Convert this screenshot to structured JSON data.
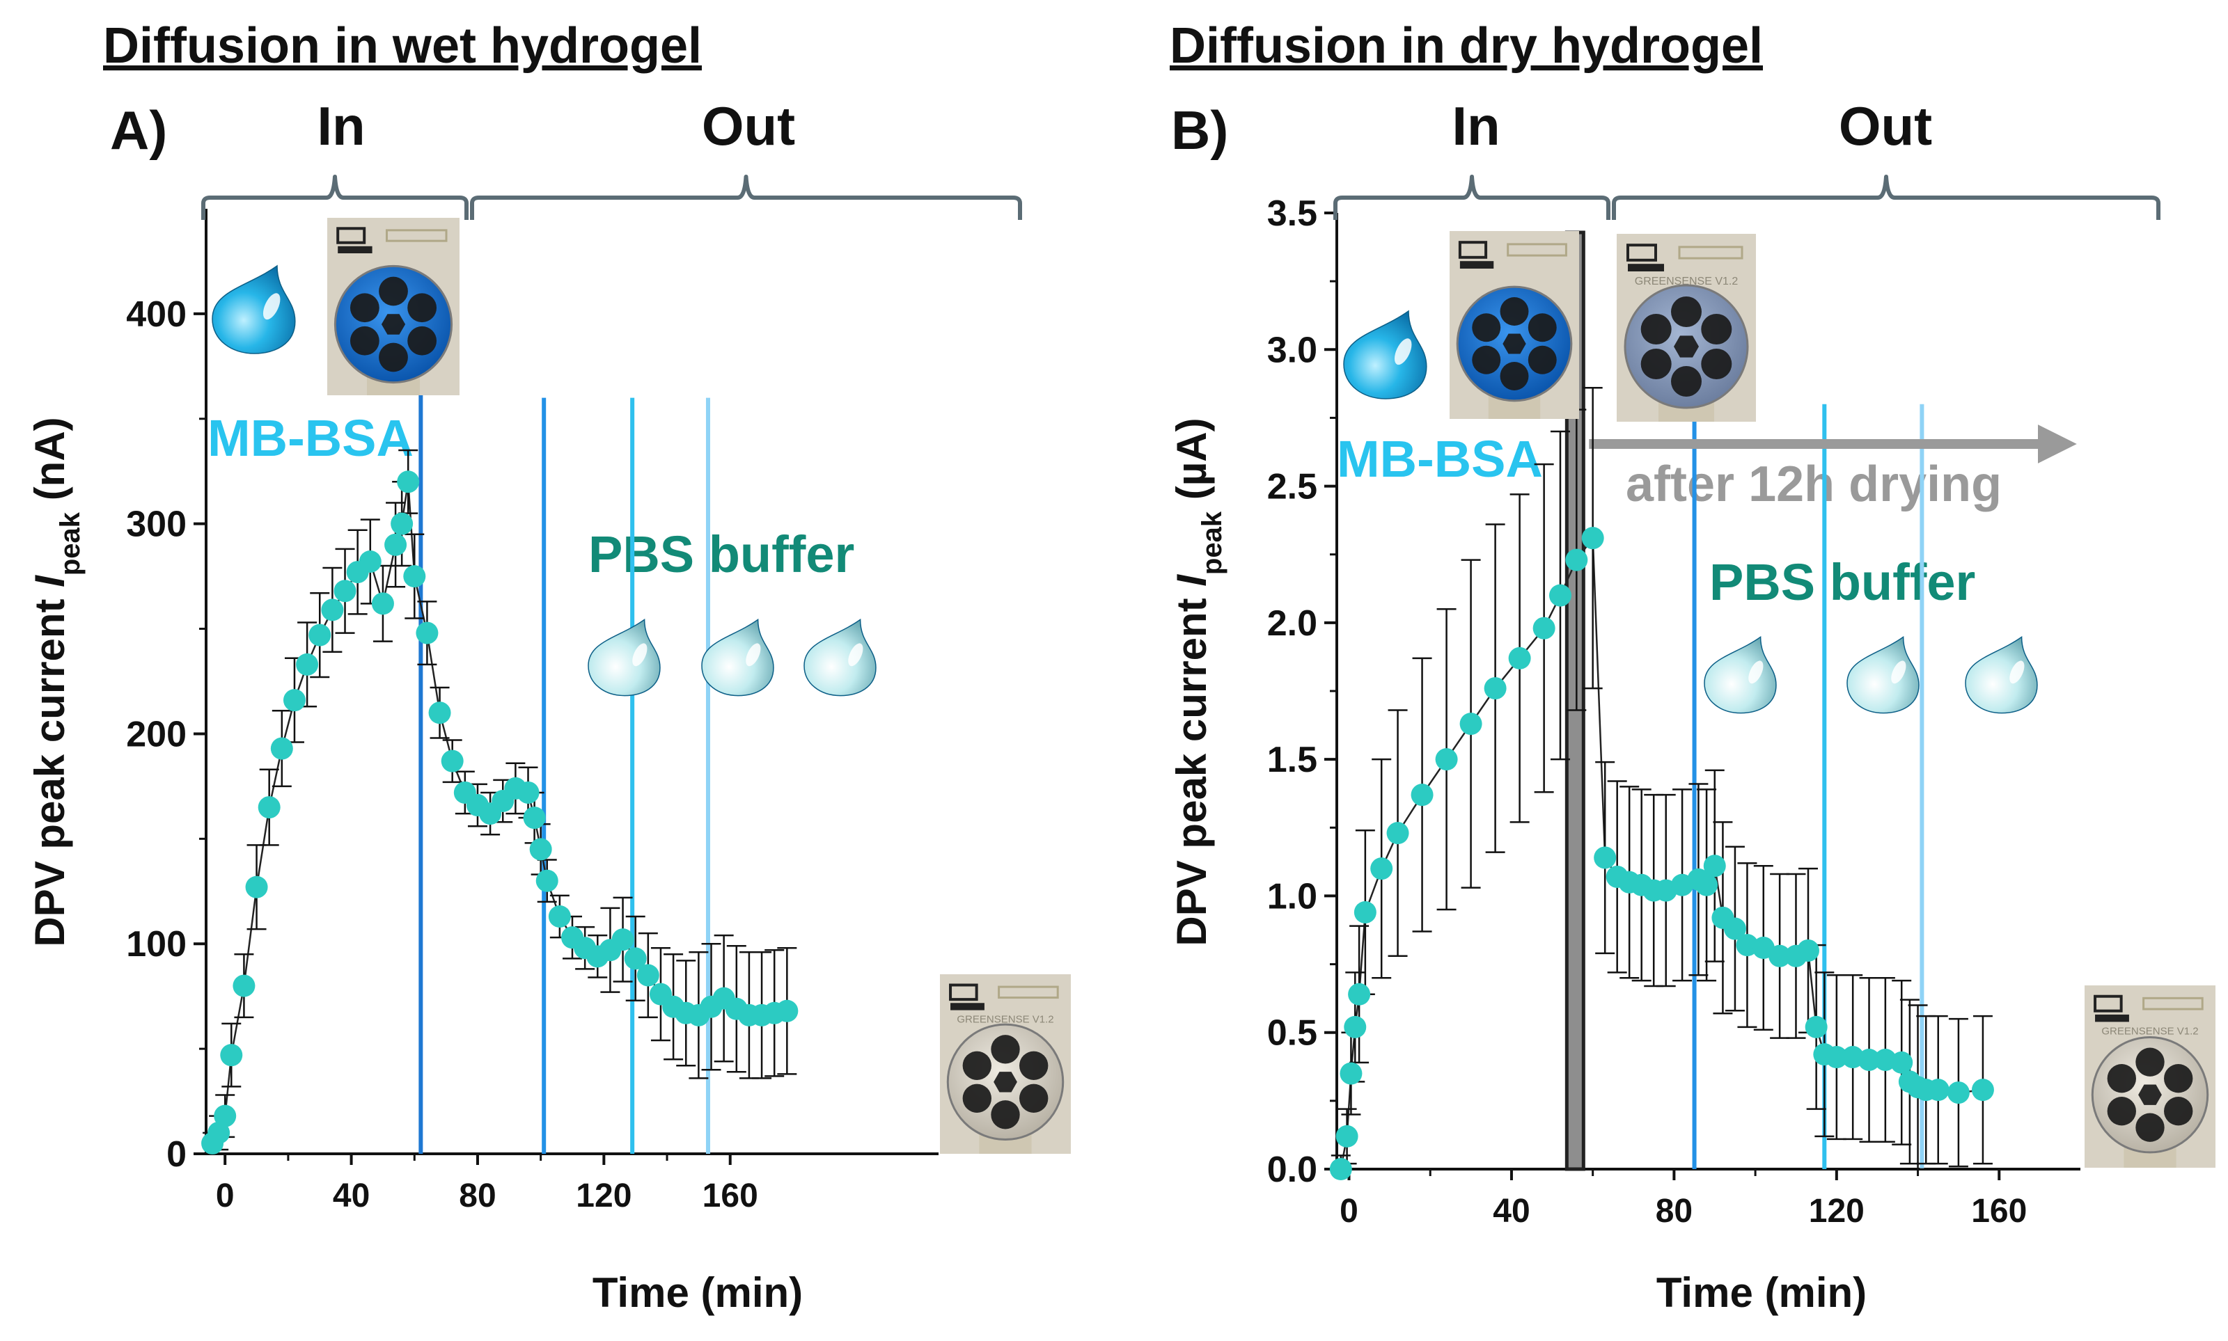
{
  "chart_data": [
    {
      "panel": "A)",
      "type": "scatter",
      "title": "Diffusion in wet hydrogel",
      "xlabel": "Time (min)",
      "ylabel": "DPV peak current I_peak (nA)",
      "ylabel_parts": {
        "main": "DPV peak current ",
        "italic": "I",
        "sub": "peak",
        "unit": " (nA)"
      },
      "xlim": [
        -6,
        226
      ],
      "ylim": [
        0,
        450
      ],
      "x_ticks": [
        0,
        40,
        80,
        120,
        160
      ],
      "y_ticks": [
        0,
        100,
        200,
        300,
        400
      ],
      "x_tick_labels": [
        "0",
        "40",
        "80",
        "120",
        "160"
      ],
      "y_tick_labels": [
        "0",
        "100",
        "200",
        "300",
        "400"
      ],
      "brace_labels": [
        "In",
        "Out"
      ],
      "annotations": {
        "mb": "MB-BSA",
        "pbs": "PBS buffer"
      },
      "vlines": [
        {
          "x": 62,
          "color": "#1e78d2"
        },
        {
          "x": 101,
          "color": "#2391e6"
        },
        {
          "x": 129,
          "color": "#2fc0ee"
        },
        {
          "x": 153,
          "color": "#8fd3f6"
        }
      ],
      "series": [
        {
          "name": "MB-BSA",
          "x": [
            -4,
            -2,
            0,
            2,
            6,
            10,
            14,
            18,
            22,
            26,
            30,
            34,
            38,
            42,
            46,
            50,
            54,
            56,
            58,
            60,
            64,
            68,
            72,
            76,
            80,
            84,
            88,
            92,
            96,
            98,
            100,
            102,
            106,
            110,
            114,
            118,
            122,
            126,
            130,
            134,
            138,
            142,
            146,
            150,
            154,
            158,
            162,
            166,
            170,
            174,
            178
          ],
          "y": [
            5,
            10,
            18,
            47,
            80,
            127,
            165,
            193,
            216,
            233,
            247,
            259,
            268,
            277,
            282,
            262,
            290,
            300,
            320,
            275,
            248,
            210,
            187,
            172,
            166,
            162,
            168,
            174,
            172,
            160,
            145,
            130,
            113,
            103,
            98,
            94,
            97,
            102,
            93,
            85,
            76,
            70,
            67,
            66,
            70,
            74,
            69,
            66,
            66,
            67,
            68
          ],
          "err": [
            5,
            8,
            10,
            15,
            15,
            20,
            18,
            18,
            20,
            20,
            20,
            20,
            20,
            20,
            20,
            18,
            20,
            20,
            15,
            20,
            15,
            12,
            10,
            10,
            10,
            10,
            10,
            12,
            12,
            12,
            12,
            10,
            10,
            10,
            10,
            10,
            20,
            20,
            20,
            20,
            22,
            25,
            25,
            30,
            30,
            30,
            30,
            30,
            30,
            30,
            30
          ]
        }
      ]
    },
    {
      "panel": "B)",
      "type": "scatter",
      "title": "Diffusion in dry hydrogel",
      "xlabel": "Time (min)",
      "ylabel": "DPV peak current I_peak (µA)",
      "ylabel_parts": {
        "main": "DPV peak current ",
        "italic": "I",
        "sub": "peak",
        "unit": " (µA)"
      },
      "xlim": [
        -3,
        180
      ],
      "ylim": [
        0,
        3.5
      ],
      "x_ticks": [
        0,
        40,
        80,
        120,
        160
      ],
      "y_ticks": [
        0,
        0.5,
        1.0,
        1.5,
        2.0,
        2.5,
        3.0,
        3.5
      ],
      "x_tick_labels": [
        "0",
        "40",
        "80",
        "120",
        "160"
      ],
      "y_tick_labels": [
        "0.0",
        "0.5",
        "1.0",
        "1.5",
        "2.0",
        "2.5",
        "3.0",
        "3.5"
      ],
      "brace_labels": [
        "In",
        "Out"
      ],
      "annotations": {
        "mb": "MB-BSA",
        "pbs": "PBS buffer",
        "dry": "after 12h drying"
      },
      "vlines": [
        {
          "x": 85,
          "color": "#2391e6"
        },
        {
          "x": 117,
          "color": "#2fc0ee"
        },
        {
          "x": 141,
          "color": "#8fd3f6"
        }
      ],
      "separator_x": 56,
      "series": [
        {
          "name": "MB-BSA",
          "x": [
            -2,
            -0.5,
            0.5,
            1.5,
            2.5,
            4,
            8,
            12,
            18,
            24,
            30,
            36,
            42,
            48,
            52,
            56,
            60,
            63,
            66,
            69,
            72,
            75,
            78,
            82,
            86,
            88,
            90,
            92,
            95,
            98,
            102,
            106,
            110,
            113,
            115,
            117,
            120,
            124,
            128,
            132,
            136,
            138,
            140,
            142,
            145,
            150,
            156
          ],
          "y": [
            0.0,
            0.12,
            0.35,
            0.52,
            0.64,
            0.94,
            1.1,
            1.23,
            1.37,
            1.5,
            1.63,
            1.76,
            1.87,
            1.98,
            2.1,
            2.23,
            2.31,
            1.14,
            1.07,
            1.05,
            1.04,
            1.02,
            1.02,
            1.04,
            1.06,
            1.04,
            1.11,
            0.92,
            0.88,
            0.82,
            0.81,
            0.78,
            0.78,
            0.8,
            0.52,
            0.42,
            0.41,
            0.41,
            0.4,
            0.4,
            0.39,
            0.32,
            0.3,
            0.29,
            0.29,
            0.28,
            0.29
          ],
          "err": [
            0.05,
            0.1,
            0.15,
            0.2,
            0.25,
            0.3,
            0.4,
            0.45,
            0.5,
            0.55,
            0.6,
            0.6,
            0.6,
            0.6,
            0.6,
            0.55,
            0.55,
            0.35,
            0.35,
            0.35,
            0.35,
            0.35,
            0.35,
            0.35,
            0.35,
            0.35,
            0.35,
            0.35,
            0.3,
            0.3,
            0.3,
            0.3,
            0.3,
            0.3,
            0.3,
            0.3,
            0.3,
            0.3,
            0.3,
            0.3,
            0.3,
            0.3,
            0.3,
            0.27,
            0.27,
            0.27,
            0.27
          ]
        }
      ]
    }
  ],
  "colors": {
    "marker": "#2ccbc2",
    "axis": "#111111",
    "brace": "#5b6c75",
    "mb_text": "#29c4ef",
    "pbs_text": "#128a77",
    "dry_text": "#9a9a9a",
    "drop": "#1aa9e0",
    "drop_light": "#b6e6ee"
  },
  "icons": [
    "water-drop-icon",
    "electrode-sensor-photo"
  ],
  "sensor_text": "GREENSENSE V1.2"
}
